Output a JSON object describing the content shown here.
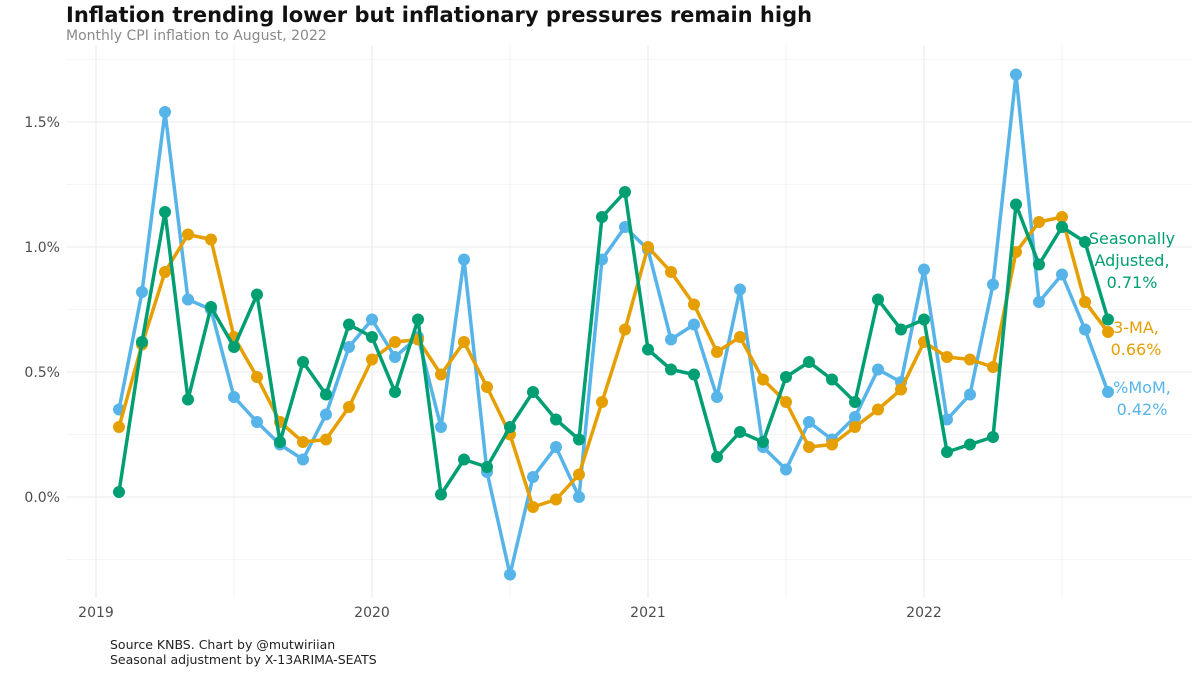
{
  "header": {
    "title": "Inflation trending lower but inflationary pressures remain high",
    "subtitle": "Monthly CPI inflation to August, 2022"
  },
  "caption": {
    "line1": "Source KNBS. Chart by @mutwiriian",
    "line2": "Seasonal adjustment by X-13ARIMA-SEATS"
  },
  "colors": {
    "seasonally_adjusted": "#009E73",
    "three_ma": "#E69F00",
    "mom": "#56B4E9",
    "grid": "#ebebeb",
    "axis_text": "#4d4d4d"
  },
  "chart_data": {
    "type": "line",
    "x": [
      "2019-02",
      "2019-03",
      "2019-04",
      "2019-05",
      "2019-06",
      "2019-07",
      "2019-08",
      "2019-09",
      "2019-10",
      "2019-11",
      "2019-12",
      "2020-01",
      "2020-02",
      "2020-03",
      "2020-04",
      "2020-05",
      "2020-06",
      "2020-07",
      "2020-08",
      "2020-09",
      "2020-10",
      "2020-11",
      "2020-12",
      "2021-01",
      "2021-02",
      "2021-03",
      "2021-04",
      "2021-05",
      "2021-06",
      "2021-07",
      "2021-08",
      "2021-09",
      "2021-10",
      "2021-11",
      "2021-12",
      "2022-01",
      "2022-02",
      "2022-03",
      "2022-04",
      "2022-05",
      "2022-06",
      "2022-07",
      "2022-08",
      "2022-09"
    ],
    "x_tick_labels": [
      "2019",
      "2020",
      "2021",
      "2022"
    ],
    "y_tick_labels": [
      "0.0%",
      "0.5%",
      "1.0%",
      "1.5%"
    ],
    "ylim": [
      -0.4,
      1.75
    ],
    "grid": true,
    "legend": "direct labels at line ends",
    "series": [
      {
        "key": "mom",
        "end_label": [
          "%MoM,",
          "0.42%"
        ],
        "values": [
          0.35,
          0.82,
          1.54,
          0.79,
          0.75,
          0.4,
          0.3,
          0.21,
          0.15,
          0.33,
          0.6,
          0.71,
          0.56,
          0.64,
          0.28,
          0.95,
          0.1,
          -0.31,
          0.08,
          0.2,
          0.0,
          0.95,
          1.08,
          0.99,
          0.63,
          0.69,
          0.4,
          0.83,
          0.2,
          0.11,
          0.3,
          0.23,
          0.32,
          0.51,
          0.46,
          0.91,
          0.31,
          0.41,
          0.85,
          1.69,
          0.78,
          0.89,
          0.67,
          0.42
        ]
      },
      {
        "key": "three_ma",
        "end_label": [
          "3-MA,",
          "0.66%"
        ],
        "values": [
          0.28,
          0.61,
          0.9,
          1.05,
          1.03,
          0.64,
          0.48,
          0.3,
          0.22,
          0.23,
          0.36,
          0.55,
          0.62,
          0.63,
          0.49,
          0.62,
          0.44,
          0.25,
          -0.04,
          -0.01,
          0.09,
          0.38,
          0.67,
          1.0,
          0.9,
          0.77,
          0.58,
          0.64,
          0.47,
          0.38,
          0.2,
          0.21,
          0.28,
          0.35,
          0.43,
          0.62,
          0.56,
          0.55,
          0.52,
          0.98,
          1.1,
          1.12,
          0.78,
          0.66
        ]
      },
      {
        "key": "seasonally_adjusted",
        "end_label": [
          "Seasonally",
          "Adjusted,",
          "0.71%"
        ],
        "values": [
          0.02,
          0.62,
          1.14,
          0.39,
          0.76,
          0.6,
          0.81,
          0.22,
          0.54,
          0.41,
          0.69,
          0.64,
          0.42,
          0.71,
          0.01,
          0.15,
          0.12,
          0.28,
          0.42,
          0.31,
          0.23,
          1.12,
          1.22,
          0.59,
          0.51,
          0.49,
          0.16,
          0.26,
          0.22,
          0.48,
          0.54,
          0.47,
          0.38,
          0.79,
          0.67,
          0.71,
          0.18,
          0.21,
          0.24,
          1.17,
          0.93,
          1.08,
          1.02,
          0.71
        ]
      }
    ]
  }
}
